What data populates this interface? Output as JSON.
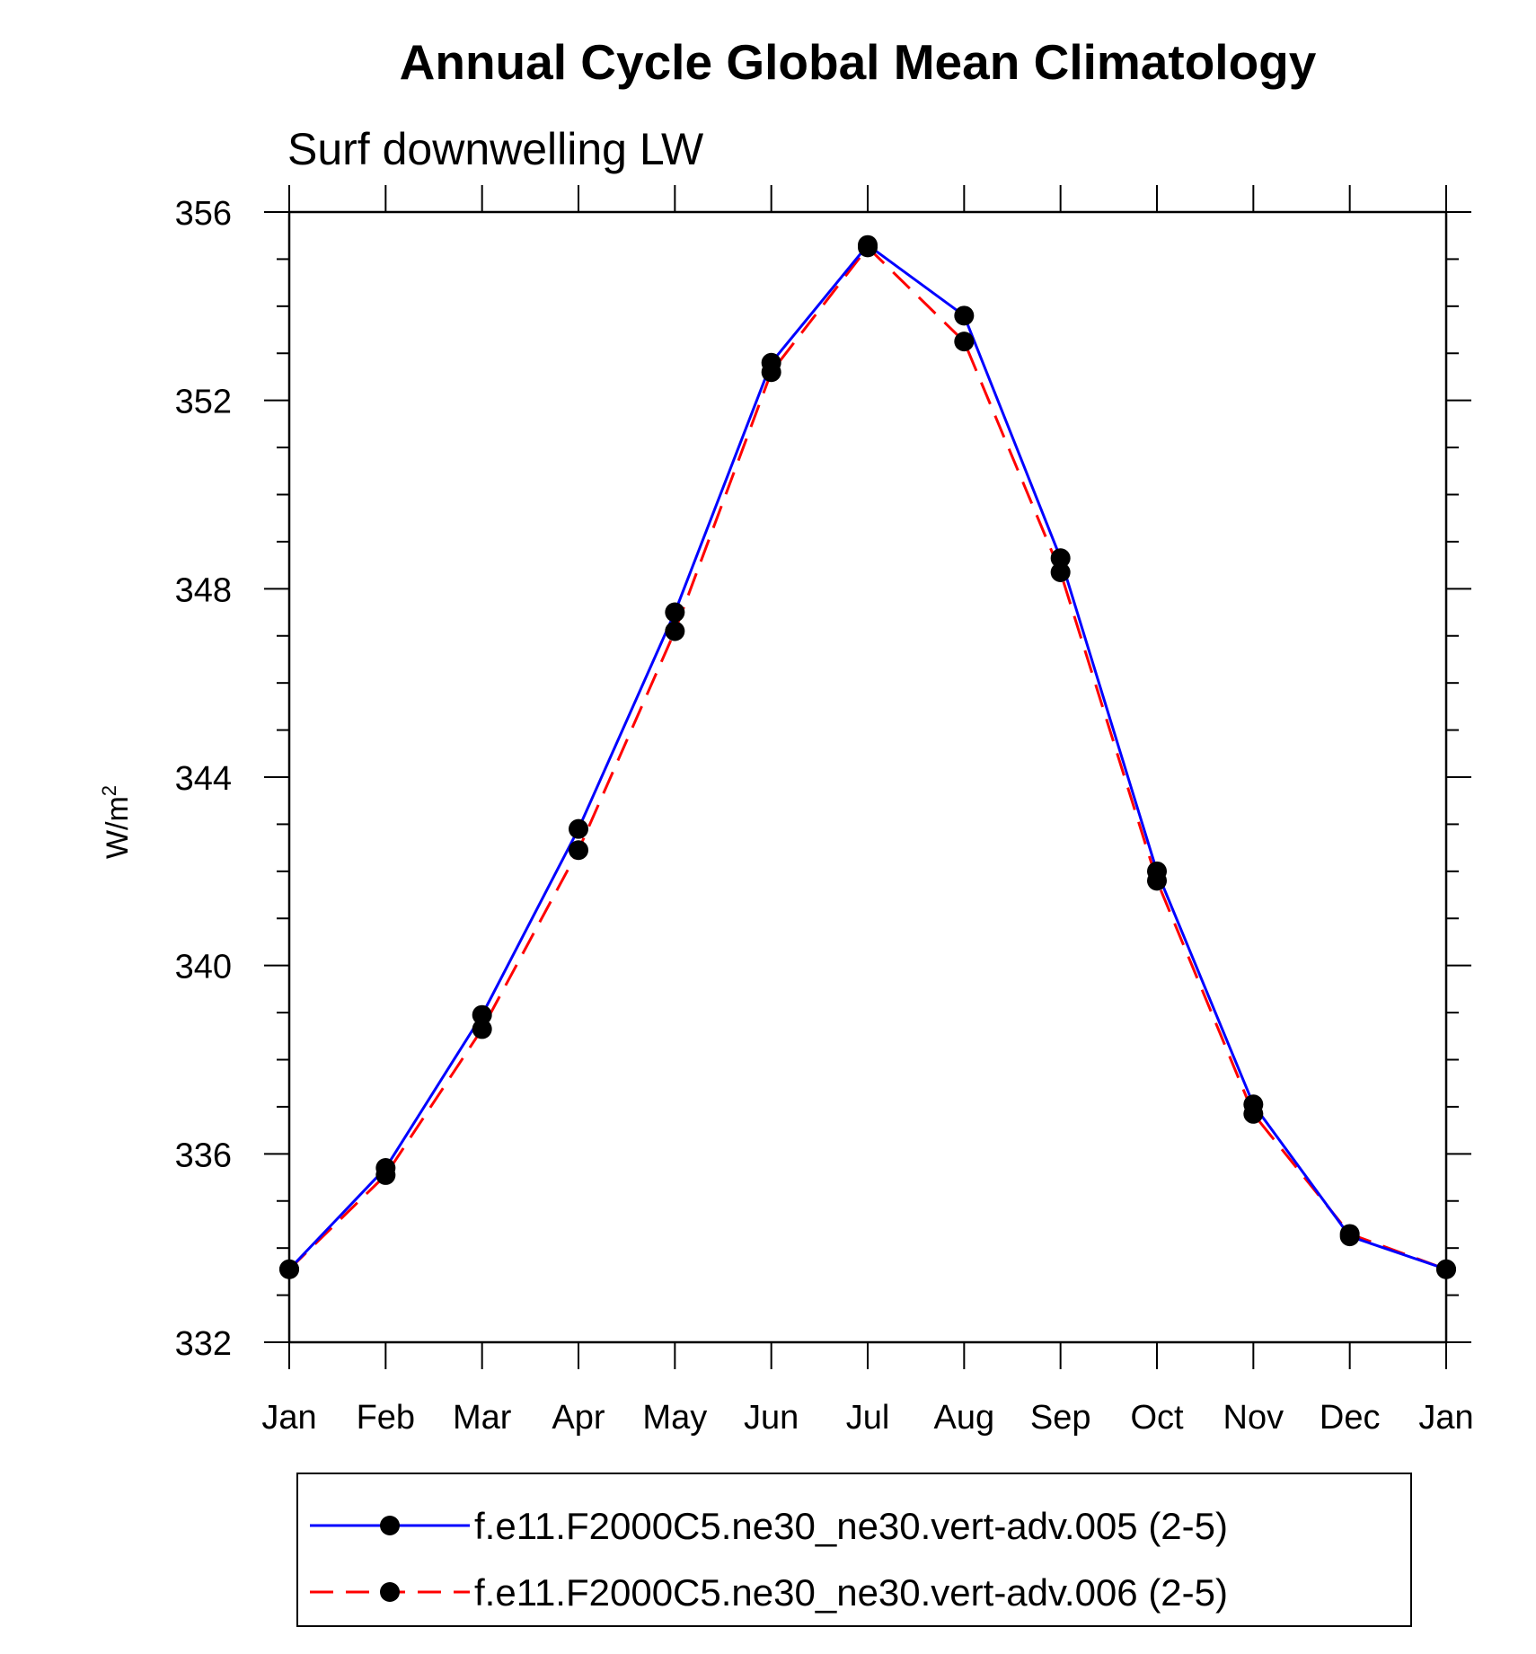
{
  "chart_data": {
    "type": "line",
    "title": "Annual Cycle Global Mean Climatology",
    "subtitle": "Surf downwelling LW",
    "xlabel": "",
    "ylabel": "W/m",
    "ylabel_superscript": "2",
    "categories": [
      "Jan",
      "Feb",
      "Mar",
      "Apr",
      "May",
      "Jun",
      "Jul",
      "Aug",
      "Sep",
      "Oct",
      "Nov",
      "Dec",
      "Jan"
    ],
    "ylim": [
      332,
      356
    ],
    "yticks": [
      332,
      336,
      340,
      344,
      348,
      352,
      356
    ],
    "grid": false,
    "legend_position": "bottom",
    "series": [
      {
        "name": "f.e11.F2000C5.ne30_ne30.vert-adv.005 (2-5)",
        "color": "#0000ff",
        "dash": "solid",
        "marker": "filled-circle",
        "values": [
          333.55,
          335.7,
          338.95,
          342.9,
          347.5,
          352.8,
          355.3,
          353.8,
          348.65,
          342.0,
          337.05,
          334.25,
          333.55
        ]
      },
      {
        "name": "f.e11.F2000C5.ne30_ne30.vert-adv.006 (2-5)",
        "color": "#ff0000",
        "dash": "dashed",
        "marker": "filled-circle",
        "values": [
          333.55,
          335.55,
          338.65,
          342.45,
          347.1,
          352.6,
          355.25,
          353.25,
          348.35,
          341.8,
          336.85,
          334.3,
          333.55
        ]
      }
    ]
  }
}
